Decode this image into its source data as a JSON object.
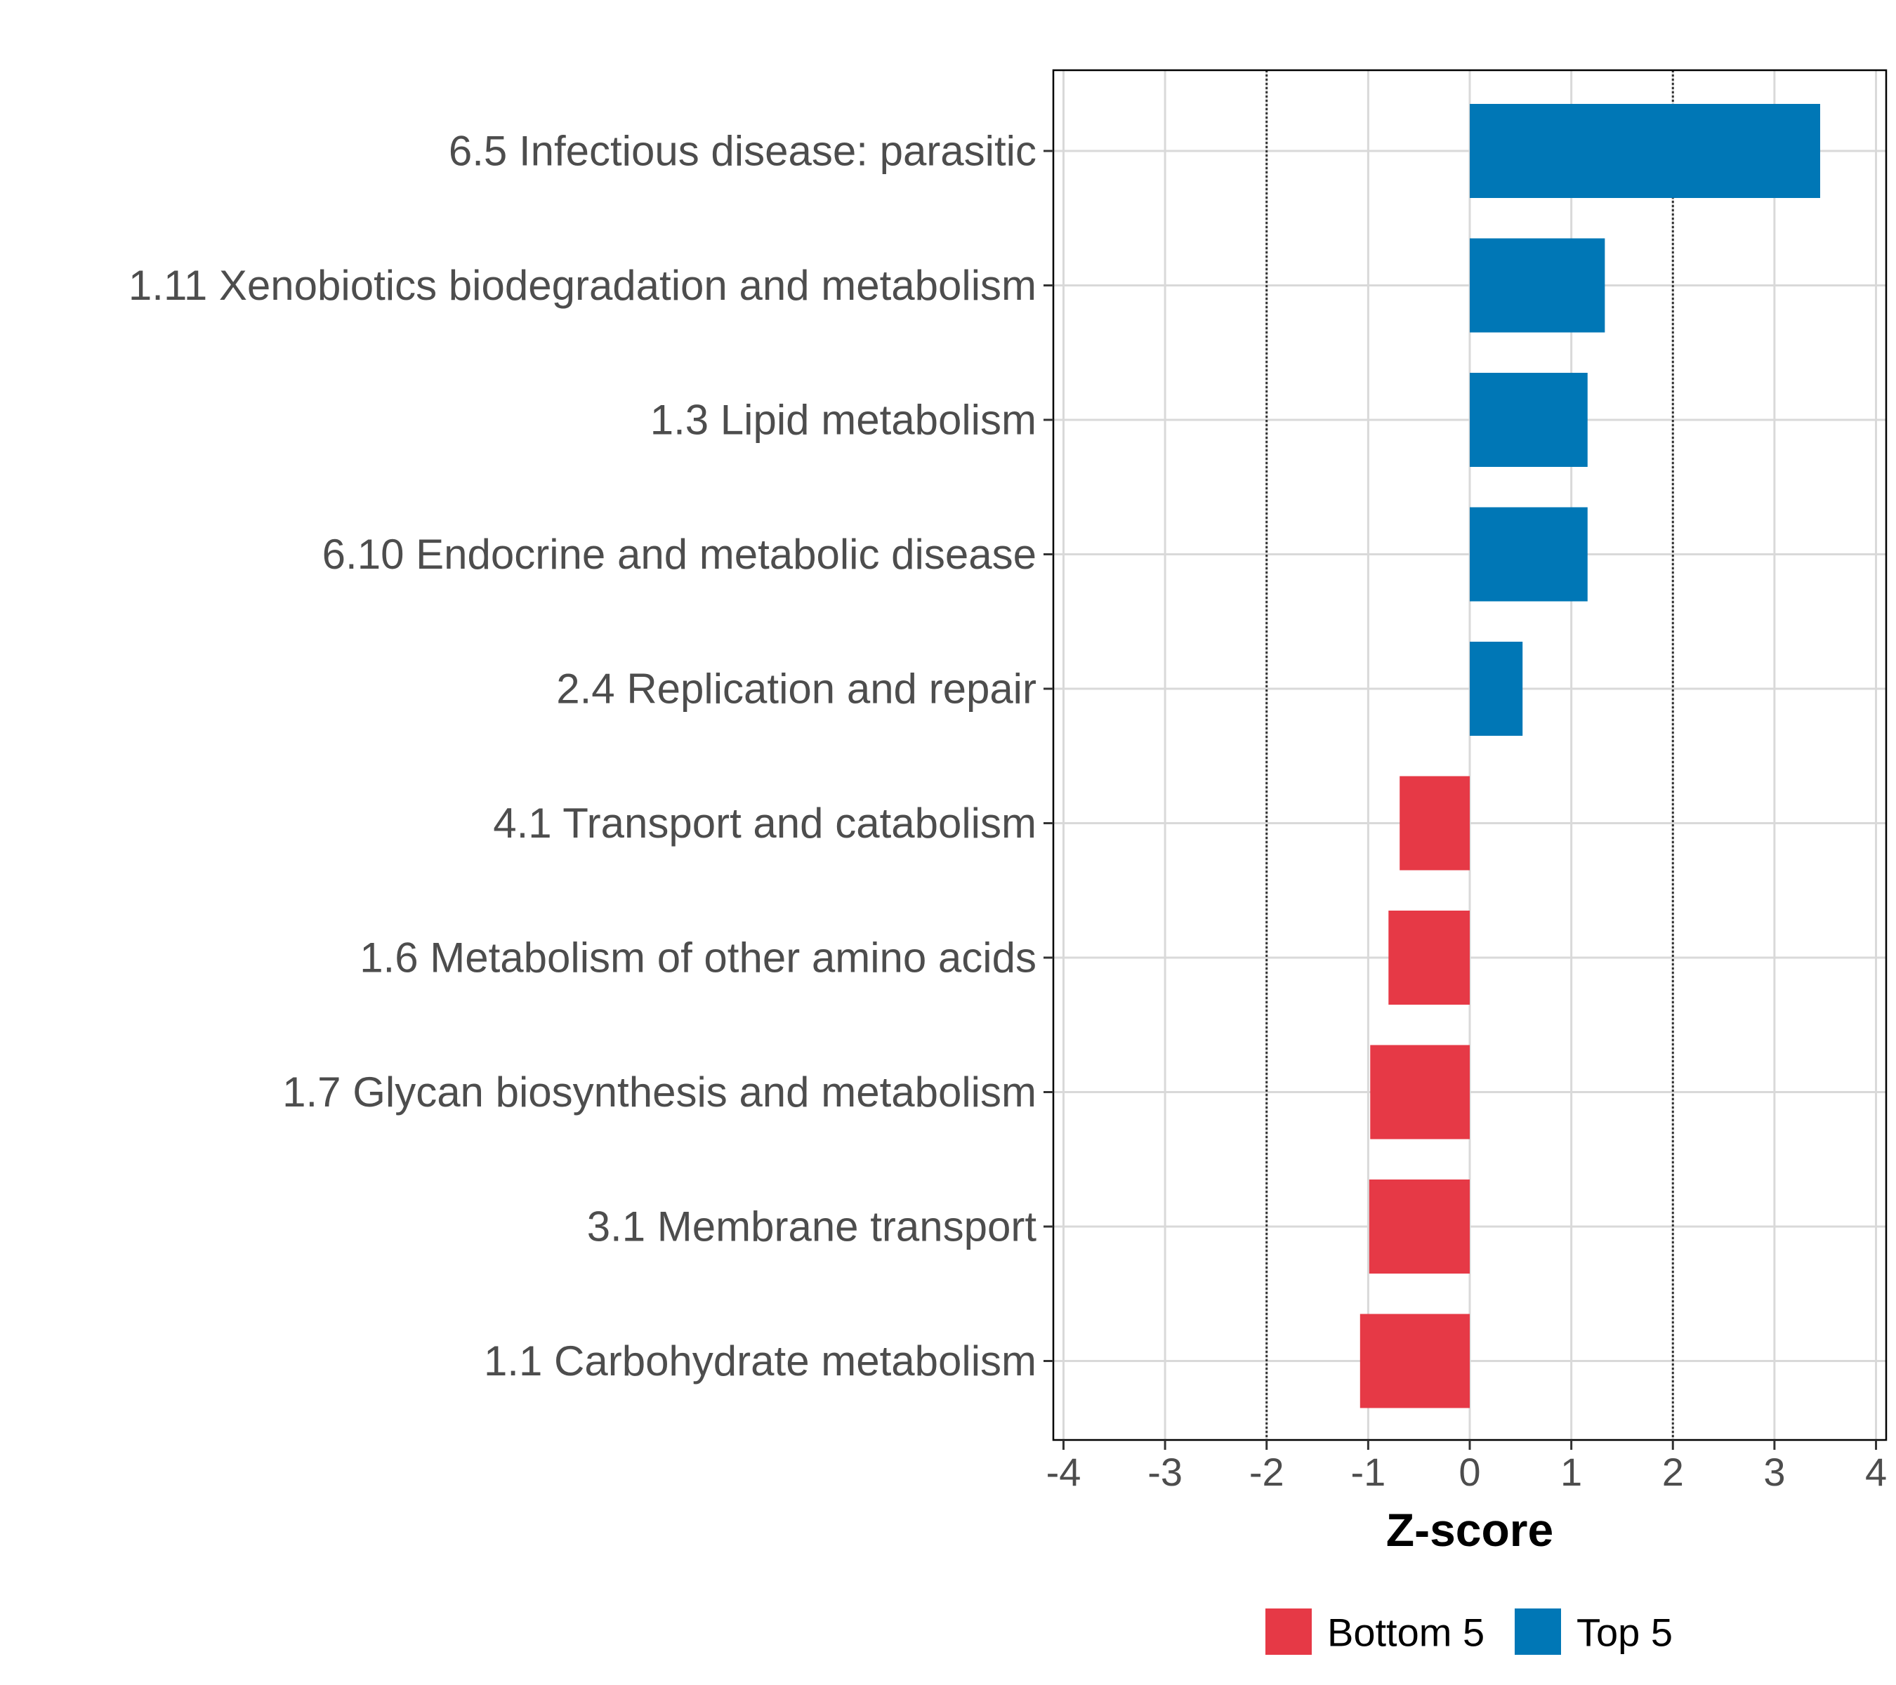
{
  "chart_data": {
    "type": "bar",
    "orientation": "horizontal",
    "categories": [
      "6.5 Infectious disease: parasitic",
      "1.11 Xenobiotics biodegradation and metabolism",
      "1.3 Lipid metabolism",
      "6.10 Endocrine and metabolic disease",
      "2.4 Replication and repair",
      "4.1 Transport and catabolism",
      "1.6 Metabolism of other amino acids",
      "1.7 Glycan biosynthesis and metabolism",
      "3.1 Membrane transport",
      "1.1 Carbohydrate metabolism"
    ],
    "values": [
      3.45,
      1.33,
      1.16,
      1.16,
      0.52,
      -0.69,
      -0.8,
      -0.98,
      -0.99,
      -1.08
    ],
    "groups": [
      "Top 5",
      "Top 5",
      "Top 5",
      "Top 5",
      "Top 5",
      "Bottom 5",
      "Bottom 5",
      "Bottom 5",
      "Bottom 5",
      "Bottom 5"
    ],
    "xlabel": "Z-score",
    "ylabel": "",
    "xlim": [
      -4.1,
      4.1
    ],
    "xticks": [
      -4,
      -3,
      -2,
      -1,
      0,
      1,
      2,
      3,
      4
    ],
    "xtick_labels": [
      "-4",
      "-3",
      "-2",
      "-1",
      "0",
      "1",
      "2",
      "3",
      "4"
    ],
    "reference_lines": [
      -2,
      2
    ],
    "grid": true,
    "legend": {
      "position": "bottom",
      "entries": [
        {
          "label": "Bottom 5",
          "color": "#e63946"
        },
        {
          "label": "Top 5",
          "color": "#0077b6"
        }
      ]
    },
    "colors": {
      "Top 5": "#0077b6",
      "Bottom 5": "#e63946"
    }
  }
}
